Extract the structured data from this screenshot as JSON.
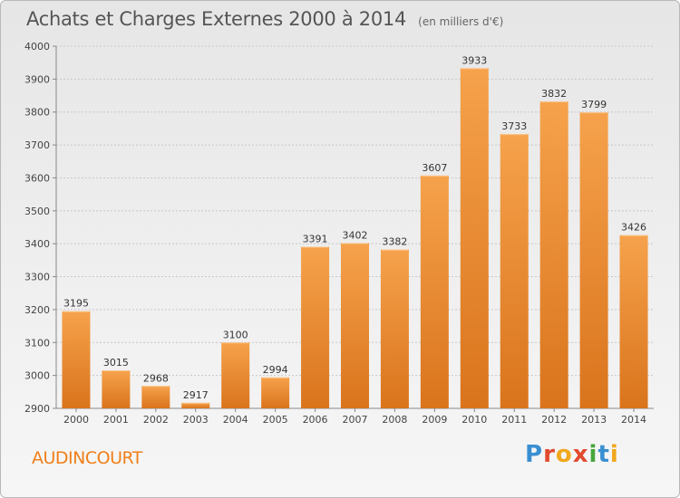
{
  "header": {
    "title": "Achats et Charges Externes 2000 à 2014",
    "subtitle": "(en milliers d'€)"
  },
  "footer": {
    "commune": "AUDINCOURT",
    "brand_letters": [
      "P",
      "r",
      "o",
      "x",
      "i",
      "t",
      "i"
    ]
  },
  "colors": {
    "bar_light": "#f6a24c",
    "bar_dark": "#d9741c",
    "accent": "#f07f1a",
    "grid": "#c8c8c8"
  },
  "chart_data": {
    "type": "bar",
    "title": "Achats et Charges Externes 2000 à 2014",
    "subtitle": "(en milliers d'€)",
    "xlabel": "",
    "ylabel": "",
    "categories": [
      "2000",
      "2001",
      "2002",
      "2003",
      "2004",
      "2005",
      "2006",
      "2007",
      "2008",
      "2009",
      "2010",
      "2011",
      "2012",
      "2013",
      "2014"
    ],
    "values": [
      3195,
      3015,
      2968,
      2917,
      3100,
      2994,
      3391,
      3402,
      3382,
      3607,
      3933,
      3733,
      3832,
      3799,
      3426
    ],
    "ylim": [
      2900,
      4000
    ],
    "yticks": [
      2900,
      3000,
      3100,
      3200,
      3300,
      3400,
      3500,
      3600,
      3700,
      3800,
      3900,
      4000
    ],
    "grid": true,
    "data_labels": true
  }
}
